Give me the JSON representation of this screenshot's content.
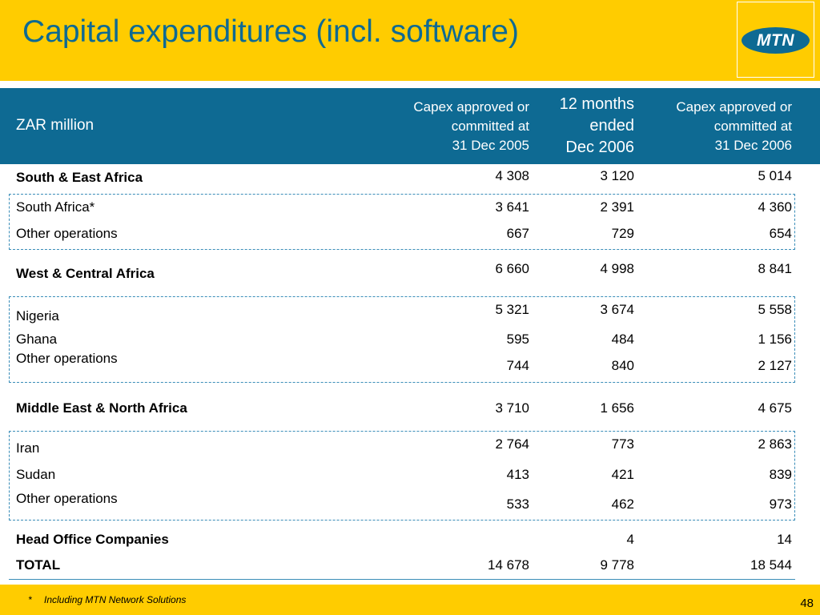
{
  "title": "Capital expenditures (incl. software)",
  "logo_text": "MTN",
  "table": {
    "unit_label": "ZAR million",
    "columns": [
      [
        "Capex approved or",
        "committed at",
        "31 Dec 2005"
      ],
      [
        "12 months",
        "ended",
        "Dec 2006"
      ],
      [
        "Capex approved or",
        "committed at",
        "31 Dec 2006"
      ]
    ],
    "rows": [
      {
        "label": "South & East Africa",
        "values": [
          "4 308",
          "3 120",
          "5 014"
        ]
      },
      {
        "label": "South Africa*",
        "values": [
          "3 641",
          "2 391",
          "4 360"
        ]
      },
      {
        "label": "Other operations",
        "values": [
          "667",
          "729",
          "654"
        ]
      },
      {
        "label": "West & Central Africa",
        "values": [
          "6 660",
          "4 998",
          "8 841"
        ]
      },
      {
        "label": "Nigeria",
        "values": [
          "5 321",
          "3 674",
          "5 558"
        ]
      },
      {
        "label": "Ghana",
        "values": [
          "595",
          "484",
          "1 156"
        ]
      },
      {
        "label": "Other operations",
        "values": [
          "744",
          "840",
          "2 127"
        ]
      },
      {
        "label": "Middle East & North Africa",
        "values": [
          "3 710",
          "1 656",
          "4 675"
        ]
      },
      {
        "label": "Iran",
        "values": [
          "2 764",
          "773",
          "2 863"
        ]
      },
      {
        "label": "Sudan",
        "values": [
          "413",
          "421",
          "839"
        ]
      },
      {
        "label": "Other operations",
        "values": [
          "533",
          "462",
          "973"
        ]
      },
      {
        "label": "Head Office Companies",
        "values": [
          "",
          "4",
          "14"
        ]
      },
      {
        "label": "TOTAL",
        "values": [
          "14 678",
          "9 778",
          "18 544"
        ]
      }
    ]
  },
  "footnote": {
    "marker": "*",
    "text": "Including MTN Network Solutions"
  },
  "page_number": "48",
  "colors": {
    "brand_yellow": "#FFCC00",
    "brand_blue": "#0E6A93",
    "dashed_line": "#3A8DB8"
  }
}
